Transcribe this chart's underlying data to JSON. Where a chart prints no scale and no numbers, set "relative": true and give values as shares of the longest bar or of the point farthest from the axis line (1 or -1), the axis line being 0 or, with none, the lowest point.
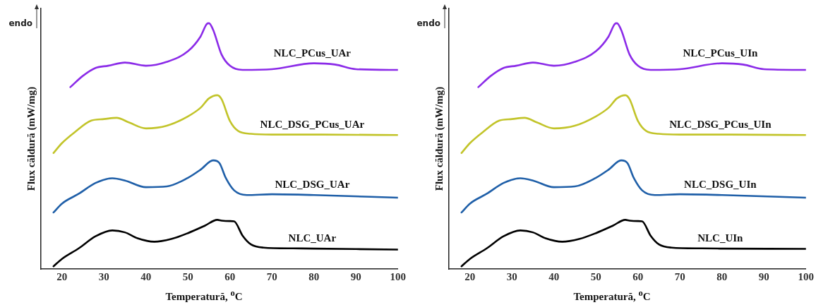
{
  "chart_data": [
    {
      "type": "line",
      "xlabel": "Temperatură, $^{o}$C",
      "ylabel": "Flux căldură (mW/mg)",
      "annotations": [
        "endo"
      ],
      "relative": true,
      "xlim": [
        15,
        100
      ],
      "xticks": [
        20,
        30,
        40,
        50,
        60,
        70,
        80,
        90,
        100
      ],
      "grid": false,
      "legend": false,
      "marker": "none",
      "line_style": "solid",
      "series": [
        {
          "name": "NLC_PCus_UAr",
          "color": "#8b2be8",
          "x": [
            22,
            25,
            28,
            31,
            35,
            40,
            45,
            50,
            53,
            54.5,
            55,
            56,
            58,
            60,
            63,
            70,
            80,
            85,
            90,
            100
          ],
          "values": [
            0.74,
            0.786,
            0.818,
            0.827,
            0.84,
            0.827,
            0.843,
            0.886,
            0.946,
            0.997,
            1,
            0.973,
            0.873,
            0.827,
            0.81,
            0.813,
            0.837,
            0.832,
            0.813,
            0.81
          ]
        },
        {
          "name": "NLC_DSG_PCus_UAr",
          "color": "#c2c42a",
          "x": [
            18,
            20,
            23,
            27,
            30,
            33,
            36,
            40,
            45,
            50,
            53,
            55,
            57,
            58,
            60,
            62,
            65,
            70,
            80,
            100
          ],
          "values": [
            0.472,
            0.512,
            0.556,
            0.604,
            0.61,
            0.615,
            0.596,
            0.572,
            0.583,
            0.621,
            0.656,
            0.694,
            0.707,
            0.691,
            0.602,
            0.561,
            0.55,
            0.547,
            0.547,
            0.545
          ]
        },
        {
          "name": "NLC_DSG_UAr",
          "color": "#1f5fa8",
          "x": [
            18,
            20,
            24,
            28,
            32,
            35,
            40,
            45,
            50,
            53,
            56,
            57.5,
            59,
            61,
            64,
            70,
            80,
            100
          ],
          "values": [
            0.23,
            0.266,
            0.306,
            0.35,
            0.369,
            0.36,
            0.333,
            0.336,
            0.371,
            0.404,
            0.442,
            0.431,
            0.371,
            0.32,
            0.301,
            0.304,
            0.301,
            0.29
          ]
        },
        {
          "name": "NLC_UAr",
          "color": "#000000",
          "x": [
            18,
            20,
            24,
            28,
            32,
            35,
            38,
            42,
            46,
            50,
            54,
            57,
            58,
            60,
            61,
            63,
            65,
            68,
            75,
            80,
            100
          ],
          "values": [
            0.011,
            0.041,
            0.084,
            0.133,
            0.157,
            0.149,
            0.125,
            0.111,
            0.122,
            0.146,
            0.176,
            0.2,
            0.197,
            0.195,
            0.194,
            0.136,
            0.1,
            0.087,
            0.084,
            0.083,
            0.079
          ]
        }
      ]
    },
    {
      "type": "line",
      "xlabel": "Temperatură, $^{o}$C",
      "ylabel": "Flux căldură (mW/mg)",
      "annotations": [
        "endo"
      ],
      "relative": true,
      "xlim": [
        15,
        100
      ],
      "xticks": [
        20,
        30,
        40,
        50,
        60,
        70,
        80,
        90,
        100
      ],
      "grid": false,
      "legend": false,
      "marker": "none",
      "line_style": "solid",
      "series": [
        {
          "name": "NLC_PCus_UIn",
          "color": "#8b2be8",
          "x": [
            22,
            25,
            28,
            31,
            35,
            40,
            45,
            50,
            53,
            54.5,
            55,
            56,
            58,
            60,
            63,
            70,
            80,
            85,
            90,
            100
          ],
          "values": [
            0.74,
            0.786,
            0.818,
            0.827,
            0.84,
            0.827,
            0.843,
            0.886,
            0.946,
            0.997,
            1,
            0.973,
            0.873,
            0.827,
            0.81,
            0.813,
            0.837,
            0.832,
            0.813,
            0.81
          ]
        },
        {
          "name": "NLC_DSG_PCus_UIn",
          "color": "#c2c42a",
          "x": [
            18,
            20,
            23,
            27,
            30,
            33,
            36,
            40,
            45,
            50,
            53,
            55,
            57,
            58,
            60,
            62,
            65,
            70,
            80,
            100
          ],
          "values": [
            0.472,
            0.512,
            0.556,
            0.604,
            0.61,
            0.615,
            0.596,
            0.572,
            0.583,
            0.621,
            0.656,
            0.694,
            0.707,
            0.691,
            0.602,
            0.561,
            0.55,
            0.547,
            0.547,
            0.545
          ]
        },
        {
          "name": "NLC_DSG_UIn",
          "color": "#1f5fa8",
          "x": [
            18,
            20,
            24,
            28,
            32,
            35,
            40,
            45,
            50,
            53,
            56,
            57.5,
            59,
            61,
            64,
            70,
            80,
            100
          ],
          "values": [
            0.23,
            0.266,
            0.306,
            0.35,
            0.369,
            0.36,
            0.333,
            0.336,
            0.371,
            0.404,
            0.442,
            0.431,
            0.371,
            0.32,
            0.301,
            0.304,
            0.301,
            0.29
          ]
        },
        {
          "name": "NLC_UIn",
          "color": "#000000",
          "x": [
            18,
            20,
            24,
            28,
            32,
            35,
            38,
            42,
            46,
            50,
            54,
            57,
            58,
            60,
            61,
            63,
            65,
            68,
            75,
            80,
            100
          ],
          "values": [
            0.011,
            0.041,
            0.084,
            0.133,
            0.157,
            0.149,
            0.125,
            0.111,
            0.122,
            0.146,
            0.176,
            0.2,
            0.197,
            0.195,
            0.194,
            0.136,
            0.1,
            0.087,
            0.084,
            0.083,
            0.082
          ]
        }
      ]
    }
  ]
}
